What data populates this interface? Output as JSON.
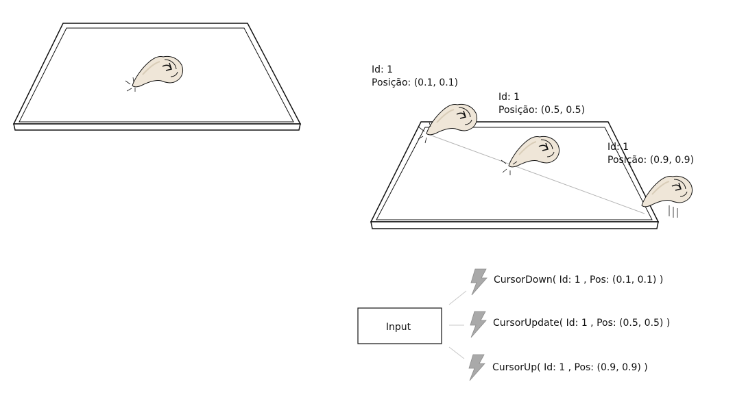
{
  "colors": {
    "stroke": "#111111",
    "skin": "#efe6d8",
    "skin_shade": "#d9cdb8",
    "trail": "#b3b3b3",
    "bolt": "#a9a9a9",
    "connector": "#c8c8c8",
    "text": "#111111"
  },
  "touch_points": [
    {
      "id_label": "Id: 1",
      "position_label": "Posição: (0.1, 0.1)"
    },
    {
      "id_label": "Id: 1",
      "position_label": "Posição: (0.5, 0.5)"
    },
    {
      "id_label": "Id: 1",
      "position_label": "Posição: (0.9, 0.9)"
    }
  ],
  "input_box": {
    "label": "Input"
  },
  "events": [
    {
      "label": "CursorDown( Id: 1 , Pos: (0.1, 0.1) )",
      "icon": "lightning-bolt-icon"
    },
    {
      "label": "CursorUpdate( Id: 1 , Pos: (0.5, 0.5) )",
      "icon": "lightning-bolt-icon"
    },
    {
      "label": "CursorUp( Id: 1 , Pos: (0.9, 0.9) )",
      "icon": "lightning-bolt-icon"
    }
  ],
  "icons": [
    "pointing-hand-icon",
    "lightning-bolt-icon"
  ]
}
